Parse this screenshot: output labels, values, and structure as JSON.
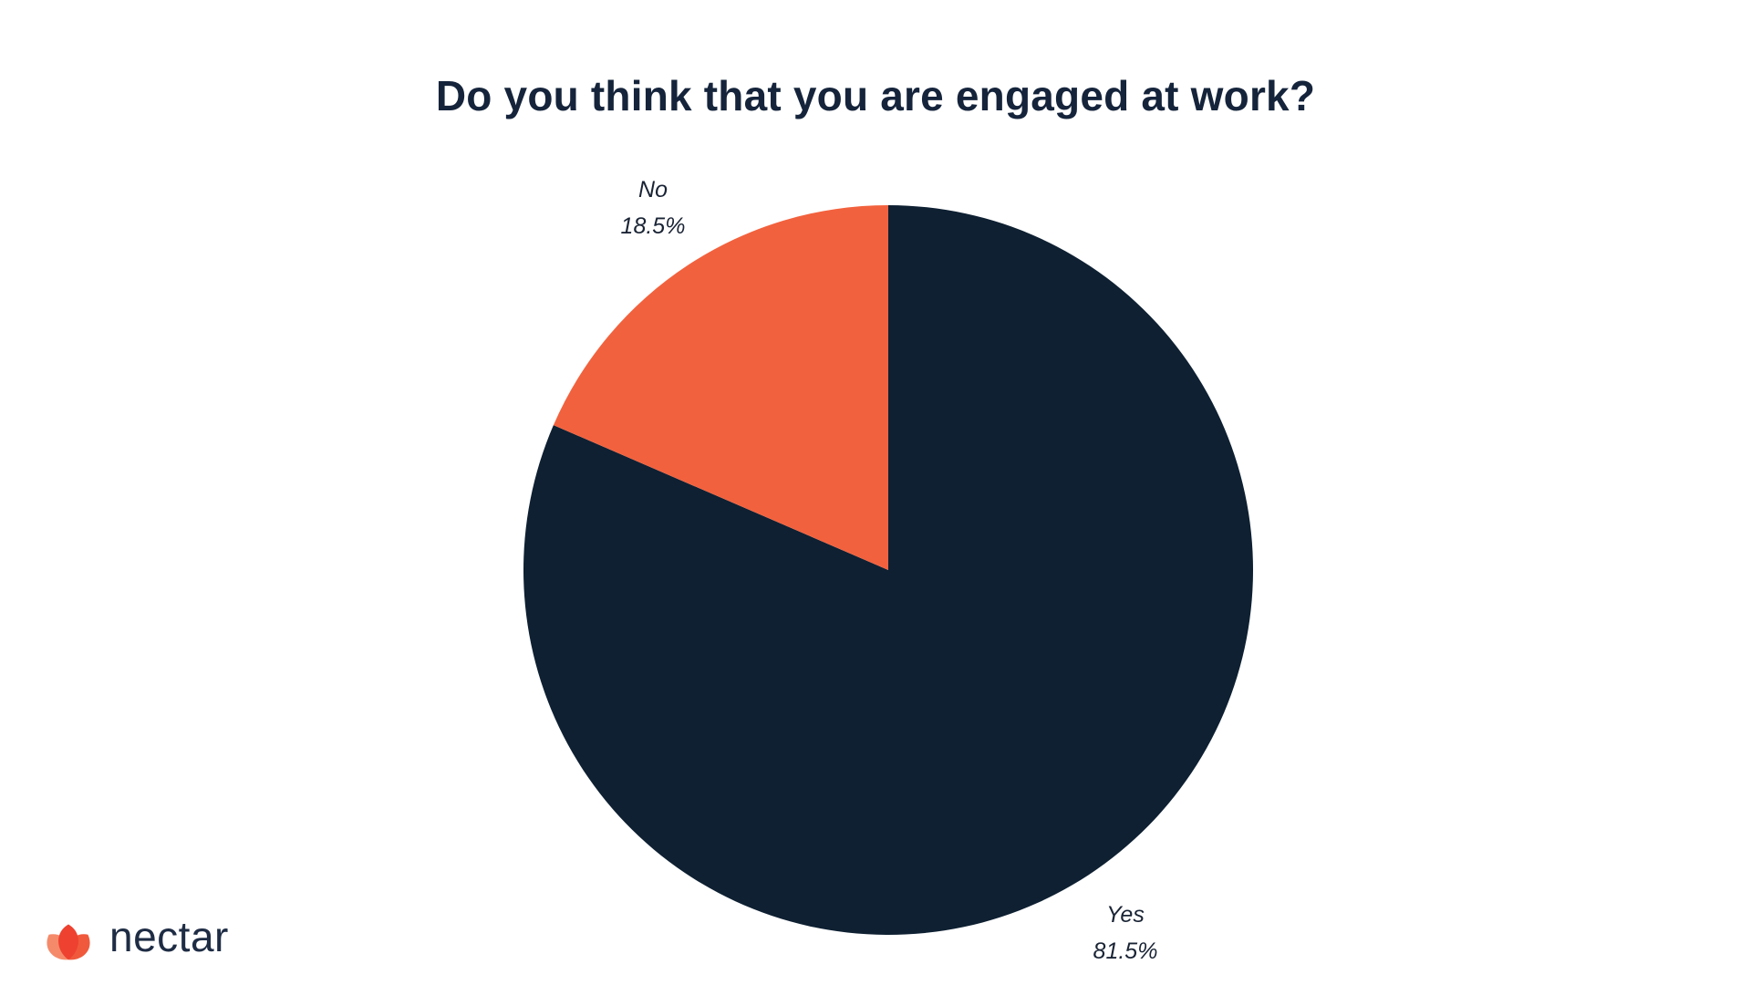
{
  "page": {
    "background": "#ffffff"
  },
  "title": "Do you think that you are engaged at work?",
  "brand": {
    "name": "nectar",
    "icon_color_left": "#f58a6a",
    "icon_color_center": "#ee4130",
    "icon_color_right": "#f0593c",
    "text_color": "#1e2c44"
  },
  "chart_data": {
    "type": "pie",
    "title": "Do you think that you are engaged at work?",
    "start_angle_deg": -90,
    "direction": "clockwise",
    "legend": "none",
    "slices": [
      {
        "label": "Yes",
        "value": 81.5,
        "percent_text": "81.5%",
        "color": "#0e2032",
        "label_position": "bottom-right-outside"
      },
      {
        "label": "No",
        "value": 18.5,
        "percent_text": "18.5%",
        "color": "#f2613d",
        "label_position": "top-left-outside"
      }
    ]
  }
}
